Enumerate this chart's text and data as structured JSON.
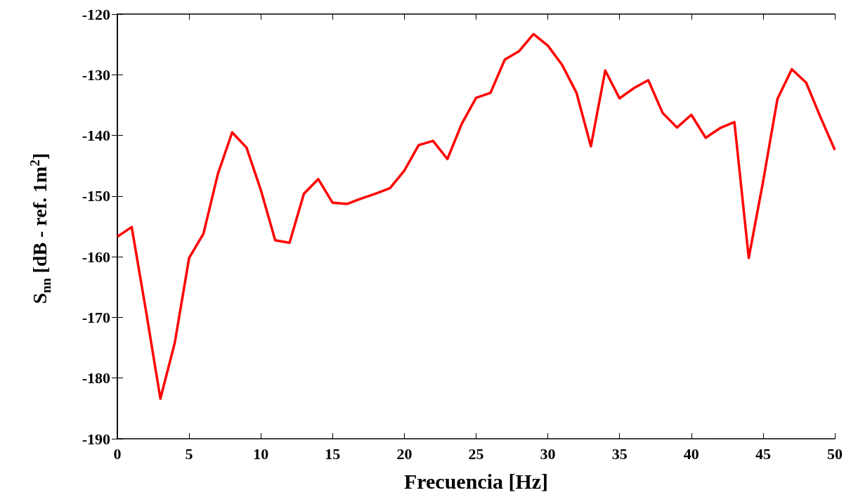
{
  "chart_data": {
    "type": "line",
    "xlabel": "Frecuencia [Hz]",
    "ylabel": "S$_{nn}$ [dB - ref. 1m$^{2}$]",
    "x": [
      0,
      1,
      2,
      3,
      4,
      5,
      6,
      7,
      8,
      9,
      10,
      11,
      12,
      13,
      14,
      15,
      16,
      17,
      18,
      19,
      20,
      21,
      22,
      23,
      24,
      25,
      26,
      27,
      28,
      29,
      30,
      31,
      32,
      33,
      34,
      35,
      36,
      37,
      38,
      39,
      40,
      41,
      42,
      43,
      44,
      45,
      46,
      47,
      48,
      49,
      50
    ],
    "series": [
      {
        "color": "#ff0000",
        "values": [
          -156.7,
          -155.1,
          -169,
          -183.4,
          -174.2,
          -160.2,
          -156.2,
          -146.4,
          -139.5,
          -142.0,
          -149,
          -157.3,
          -157.7,
          -149.6,
          -147.2,
          -151.1,
          -151.3,
          -150.4,
          -149.6,
          -148.7,
          -145.8,
          -141.6,
          -140.9,
          -143.9,
          -138.1,
          -133.8,
          -133.0,
          -127.5,
          -126.1,
          -123.3,
          -125.2,
          -128.4,
          -133.0,
          -141.8,
          -129.3,
          -133.9,
          -132.2,
          -130.9,
          -136.3,
          -138.7,
          -136.6,
          -140.4,
          -138.8,
          -137.8,
          -160.2,
          -147.6,
          -134.0,
          -129.1,
          -131.3,
          -137,
          -142.4
        ]
      }
    ],
    "xlim": [
      0,
      50
    ],
    "xticks": [
      0,
      5,
      10,
      15,
      20,
      25,
      30,
      35,
      40,
      45,
      50
    ],
    "ylim": [
      -190,
      -120
    ],
    "yticks": [
      -190,
      -180,
      -170,
      -160,
      -150,
      -140,
      -130,
      -120
    ],
    "grid": false,
    "marker": "none",
    "line_style": "solid"
  }
}
